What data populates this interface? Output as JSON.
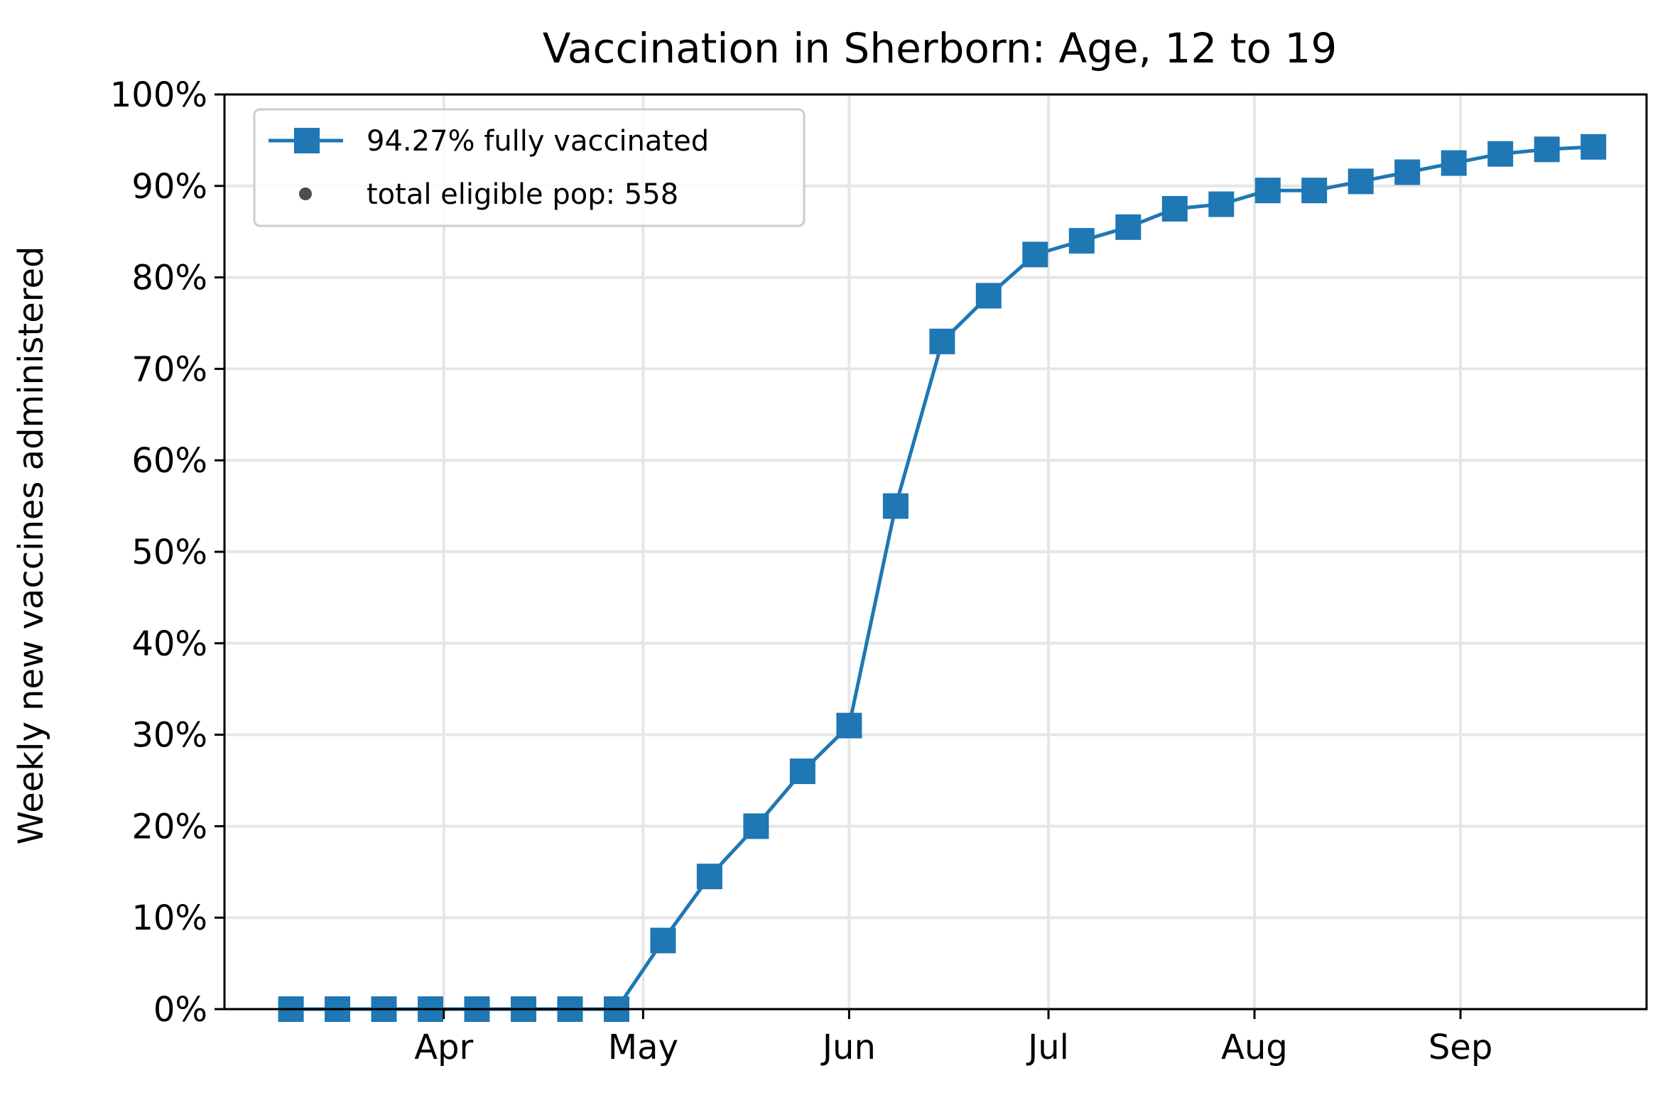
{
  "chart_data": {
    "type": "line",
    "title": "Vaccination in Sherborn: Age, 12 to 19",
    "xlabel": "",
    "ylabel": "Weekly new vaccines administered",
    "x_ticks": [
      {
        "label": "Apr",
        "date": "2021-04-01"
      },
      {
        "label": "May",
        "date": "2021-05-01"
      },
      {
        "label": "Jun",
        "date": "2021-06-01"
      },
      {
        "label": "Jul",
        "date": "2021-07-01"
      },
      {
        "label": "Aug",
        "date": "2021-08-01"
      },
      {
        "label": "Sep",
        "date": "2021-09-01"
      }
    ],
    "xlim": [
      "2021-02-27",
      "2021-09-29"
    ],
    "y_ticks": [
      "0%",
      "10%",
      "20%",
      "30%",
      "40%",
      "50%",
      "60%",
      "70%",
      "80%",
      "90%",
      "100%"
    ],
    "ylim": [
      0,
      100
    ],
    "grid": true,
    "legend_position": "top-left",
    "legend": [
      {
        "label": "94.27% fully vaccinated",
        "marker": "square-line"
      },
      {
        "label": "total eligible pop: 558",
        "marker": "dot"
      }
    ],
    "series": [
      {
        "name": "94.27% fully vaccinated",
        "color": "#1f77b4",
        "marker": "square",
        "x": [
          "2021-03-09",
          "2021-03-16",
          "2021-03-23",
          "2021-03-30",
          "2021-04-06",
          "2021-04-13",
          "2021-04-20",
          "2021-04-27",
          "2021-05-04",
          "2021-05-11",
          "2021-05-18",
          "2021-05-25",
          "2021-06-01",
          "2021-06-08",
          "2021-06-15",
          "2021-06-22",
          "2021-06-29",
          "2021-07-06",
          "2021-07-13",
          "2021-07-20",
          "2021-07-27",
          "2021-08-03",
          "2021-08-10",
          "2021-08-17",
          "2021-08-24",
          "2021-08-31",
          "2021-09-07",
          "2021-09-14",
          "2021-09-21"
        ],
        "values": [
          0,
          0,
          0,
          0,
          0,
          0,
          0,
          0,
          7.5,
          14.5,
          20,
          26,
          31,
          55,
          73,
          78,
          82.5,
          84,
          85.5,
          87.5,
          88,
          89.5,
          89.5,
          90.5,
          91.5,
          92.5,
          93.5,
          94,
          94.27
        ]
      }
    ],
    "legend_dot_color": "#4d4d4d"
  }
}
